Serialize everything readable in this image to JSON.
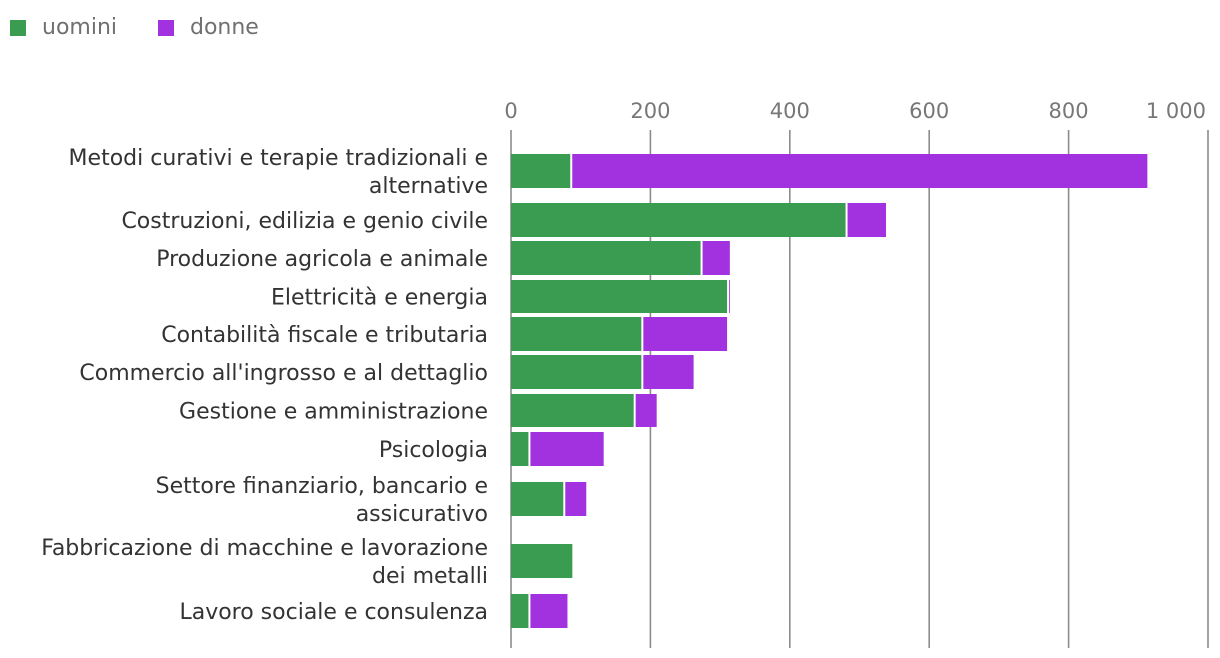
{
  "chart_data": {
    "type": "bar",
    "orientation": "horizontal",
    "stacked": true,
    "legend_position": "top-left",
    "grid": true,
    "xlim": [
      0,
      1000
    ],
    "x_ticks": [
      0,
      200,
      400,
      600,
      800,
      1000
    ],
    "x_tick_labels": [
      "0",
      "200",
      "400",
      "600",
      "800",
      "1 000"
    ],
    "categories": [
      "Metodi curativi e terapie tradizionali e alternative",
      "Costruzioni, edilizia e genio civile",
      "Produzione agricola e animale",
      "Elettricità e energia",
      "Contabilità fiscale e tributaria",
      "Commercio all'ingrosso e al dettaglio",
      "Gestione e amministrazione",
      "Psicologia",
      "Settore finanziario, bancario e assicurativo",
      "Fabbricazione di macchine e lavorazione dei metalli",
      "Lavoro sociale e consulenza"
    ],
    "series": [
      {
        "name": "uomini",
        "color": "#3a9c50",
        "values": [
          85,
          480,
          272,
          310,
          187,
          187,
          176,
          25,
          75,
          88,
          25
        ]
      },
      {
        "name": "donne",
        "color": "#a232e0",
        "values": [
          828,
          58,
          42,
          3,
          123,
          75,
          33,
          108,
          33,
          0,
          56
        ]
      }
    ]
  }
}
